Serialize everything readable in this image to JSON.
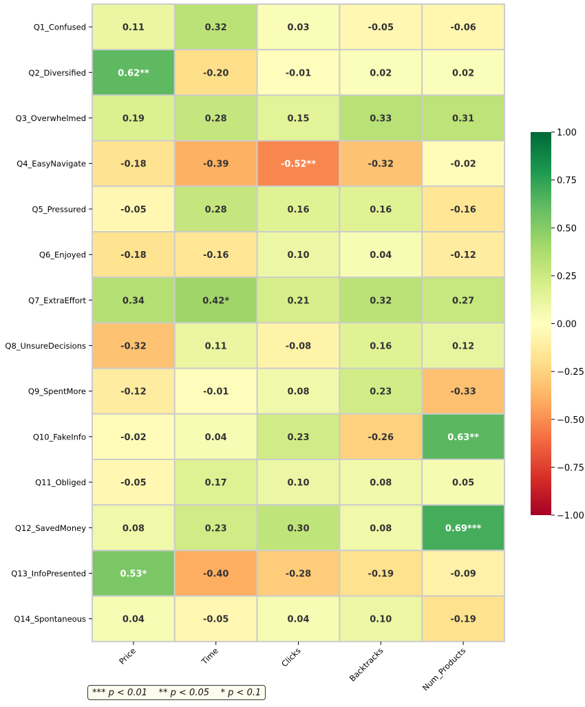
{
  "chart_data": {
    "type": "heatmap",
    "columns": [
      "Price",
      "Time",
      "Clicks",
      "Backtracks",
      "Num_Products"
    ],
    "rows": [
      "Q1_Confused",
      "Q2_Diversified",
      "Q3_Overwhelmed",
      "Q4_EasyNavigate",
      "Q5_Pressured",
      "Q6_Enjoyed",
      "Q7_ExtraEffort",
      "Q8_UnsureDecisions",
      "Q9_SpentMore",
      "Q10_FakeInfo",
      "Q11_Obliged",
      "Q12_SavedMoney",
      "Q13_InfoPresented",
      "Q14_Spontaneous"
    ],
    "values": [
      [
        0.11,
        0.32,
        0.03,
        -0.05,
        -0.06
      ],
      [
        0.62,
        -0.2,
        -0.01,
        0.02,
        0.02
      ],
      [
        0.19,
        0.28,
        0.15,
        0.33,
        0.31
      ],
      [
        -0.18,
        -0.39,
        -0.52,
        -0.32,
        -0.02
      ],
      [
        -0.05,
        0.28,
        0.16,
        0.16,
        -0.16
      ],
      [
        -0.18,
        -0.16,
        0.1,
        0.04,
        -0.12
      ],
      [
        0.34,
        0.42,
        0.21,
        0.32,
        0.27
      ],
      [
        -0.32,
        0.11,
        -0.08,
        0.16,
        0.12
      ],
      [
        -0.12,
        -0.01,
        0.08,
        0.23,
        -0.33
      ],
      [
        -0.02,
        0.04,
        0.23,
        -0.26,
        0.63
      ],
      [
        -0.05,
        0.17,
        0.1,
        0.08,
        0.05
      ],
      [
        0.08,
        0.23,
        0.3,
        0.08,
        0.69
      ],
      [
        0.53,
        -0.4,
        -0.28,
        -0.19,
        -0.09
      ],
      [
        0.04,
        -0.05,
        0.04,
        0.1,
        -0.19
      ]
    ],
    "labels": [
      [
        "0.11",
        "0.32",
        "0.03",
        "-0.05",
        "-0.06"
      ],
      [
        "0.62**",
        "-0.20",
        "-0.01",
        "0.02",
        "0.02"
      ],
      [
        "0.19",
        "0.28",
        "0.15",
        "0.33",
        "0.31"
      ],
      [
        "-0.18",
        "-0.39",
        "-0.52**",
        "-0.32",
        "-0.02"
      ],
      [
        "-0.05",
        "0.28",
        "0.16",
        "0.16",
        "-0.16"
      ],
      [
        "-0.18",
        "-0.16",
        "0.10",
        "0.04",
        "-0.12"
      ],
      [
        "0.34",
        "0.42*",
        "0.21",
        "0.32",
        "0.27"
      ],
      [
        "-0.32",
        "0.11",
        "-0.08",
        "0.16",
        "0.12"
      ],
      [
        "-0.12",
        "-0.01",
        "0.08",
        "0.23",
        "-0.33"
      ],
      [
        "-0.02",
        "0.04",
        "0.23",
        "-0.26",
        "0.63**"
      ],
      [
        "-0.05",
        "0.17",
        "0.10",
        "0.08",
        "0.05"
      ],
      [
        "0.08",
        "0.23",
        "0.30",
        "0.08",
        "0.69***"
      ],
      [
        "0.53*",
        "-0.40",
        "-0.28",
        "-0.19",
        "-0.09"
      ],
      [
        "0.04",
        "-0.05",
        "0.04",
        "0.10",
        "-0.19"
      ]
    ],
    "colormap": "RdYlGn",
    "vmin": -1.0,
    "vmax": 1.0,
    "colorbar_ticks": [
      1.0,
      0.75,
      0.5,
      0.25,
      0.0,
      -0.25,
      -0.5,
      -0.75,
      -1.0
    ],
    "colorbar_tick_labels": [
      "1.00",
      "0.75",
      "0.50",
      "0.25",
      "0.00",
      "−0.25",
      "−0.50",
      "−0.75",
      "−1.00"
    ],
    "cell_border_color": "#cccccc",
    "significance_note": "*** p < 0.01    ** p < 0.05    * p < 0.1"
  }
}
